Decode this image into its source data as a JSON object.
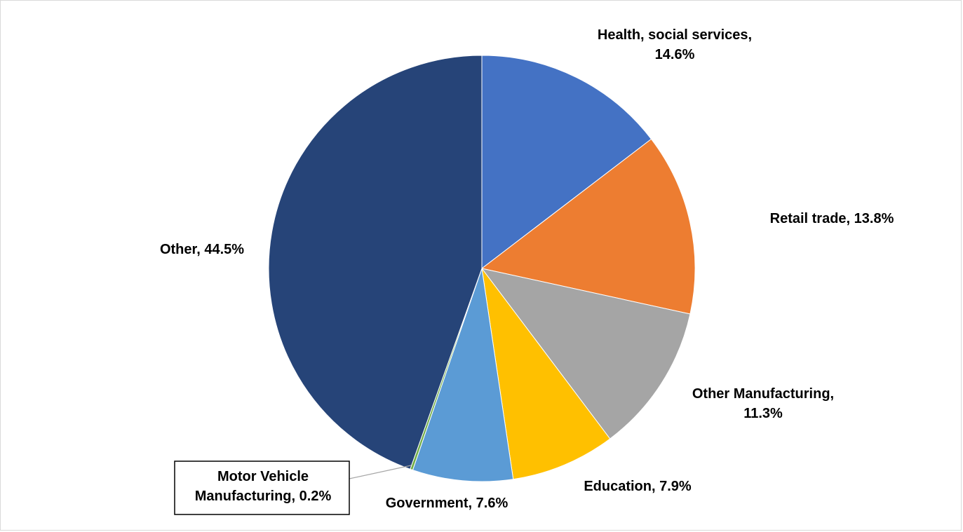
{
  "chart_data": {
    "type": "pie",
    "title": "",
    "slices": [
      {
        "label_lines": [
          "Health, social services,",
          "14.6%"
        ],
        "category": "Health, social services",
        "value": 14.6,
        "color": "#4472C4"
      },
      {
        "label_lines": [
          "Retail trade, 13.8%"
        ],
        "category": "Retail trade",
        "value": 13.8,
        "color": "#ED7D31"
      },
      {
        "label_lines": [
          "Other Manufacturing,",
          "11.3%"
        ],
        "category": "Other Manufacturing",
        "value": 11.3,
        "color": "#A5A5A5"
      },
      {
        "label_lines": [
          "Education, 7.9%"
        ],
        "category": "Education",
        "value": 7.9,
        "color": "#FFC000"
      },
      {
        "label_lines": [
          "Government, 7.6%"
        ],
        "category": "Government",
        "value": 7.6,
        "color": "#5B9BD5"
      },
      {
        "label_lines": [
          "Motor Vehicle",
          "Manufacturing, 0.2%"
        ],
        "category": "Motor Vehicle Manufacturing",
        "value": 0.2,
        "color": "#70AD47"
      },
      {
        "label_lines": [
          "Other, 44.5%"
        ],
        "category": "Other",
        "value": 44.5,
        "color": "#264478"
      }
    ],
    "start_angle": "12 o'clock",
    "direction": "clockwise",
    "legend": "none",
    "data_labels": "outside"
  }
}
